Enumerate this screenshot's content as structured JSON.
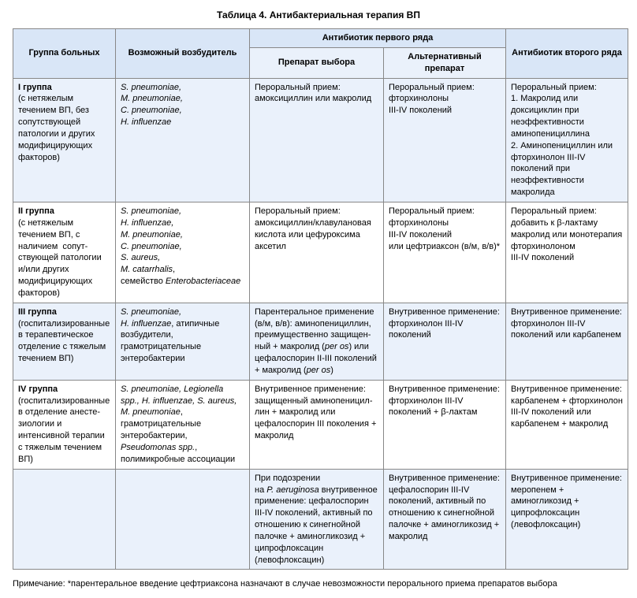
{
  "title": "Таблица 4. Антибактериальная терапия ВП",
  "headers": {
    "group": "Группа больных",
    "pathogen": "Возможный возбудитель",
    "firstline": "Антибиотик первого ряда",
    "choice": "Препарат выбора",
    "alt": "Альтернативный препарат",
    "secondline": "Антибиотик второго ряда"
  },
  "rows": [
    {
      "group_html": "<b>I группа</b><br>(с нетяжелым течением ВП, без сопутствующей патологии и других модифицирующих факторов)",
      "pathogen_html": "<i>S. pneumoniae,<br>M. pneumoniae,<br>C. pneumoniae,<br>H. influenzae</i>",
      "choice_html": "Пероральный&nbsp;прием: амоксициллин или макролид",
      "alt_html": "Пероральный&nbsp;прием: фторхинолоны<br>III-IV поколений",
      "second_html": "Пероральный&nbsp;прием:<br>1. Макролид или доксициклин при неэффективности аминопенициллина<br>2. Аминопенициллин или фтор­хинолон III-IV поколений при неэффективности макролида"
    },
    {
      "group_html": "<b>II группа</b><br>(с нетяжелым течением ВП, с наличием &nbsp;сопут­ствующей патологии и/или других модифицирующих факторов)",
      "pathogen_html": "<i>S. pneumoniae,<br>H. influenzae,<br>M. pneumoniae,<br>C. pneumoniae,<br>S. aureus,<br>M. catarrhalis</i>,<br>семейство <i>Enterobacteriaceae</i>",
      "choice_html": "Пероральный&nbsp;прием: амоксициллин/клавулановая кислота или цефуроксима аксетил",
      "alt_html": "Пероральный&nbsp;прием: фторхинолоны<br>III-IV поколений<br>или цефтриаксон (в/м, в/в)*",
      "second_html": "Пероральный прием:<br>добавить к β-лактаму макролид или монотерапия фторхинолоном<br>III-IV поколений"
    },
    {
      "group_html": "<b>III группа</b><br>(госпитализированные в терапевтическое отделение с тяжелым течением ВП)",
      "pathogen_html": "<i>S. pneumoniae,<br>H. influenzae</i>, атипичные возбудители, грамотрицательные энтеробактерии",
      "choice_html": "Парентеральное применение (в/м, в/в): аминопенициллин, преимущественно защищен­ный + макролид (<i>per os</i>) или цефалоспорин II-III поколе­ний + макролид (<i>per os</i>)",
      "alt_html": "Внутривенное применение: фторхинолон III-IV поколений",
      "second_html": "Внутривенное применение: фторхинолон III-IV поколений или карбапенем"
    },
    {
      "group_html": "<b>IV группа</b><br>(госпитализированные в отделение анесте­зиологии и интенсивной терапии с тяжелым течением ВП)",
      "pathogen_html": "<i>S. pneumoniae, Legionella spp., H. influenzae, S. aureus,<br>M. pneumoniae</i>, грамотрицательные энтеробактерии, <i>Pseudomonas spp.</i>, полимикробные ассоциации",
      "choice_html": "Внутривенное применение: защищенный аминопеницил­лин + макролид или цефалоспорин III поколения + макролид",
      "alt_html": "Внутривенное применение: фторхинолон III-IV поколений + β-лактам",
      "second_html": "Внутривенное применение: карбапенем + фторхинолон III-IV поколений или карбапенем + макролид"
    },
    {
      "group_html": "",
      "pathogen_html": "",
      "choice_html": "При подозрении<br>на <i>P. aeruginosa</i> внутривенное применение: цефалоспорин III-IV поколений, активный по отношению к синегнойной палочке + аминогликозид + ципрофлоксацин (левофлоксацин)",
      "alt_html": "Внутривенное применение: цефалоспорин III-IV поколе­ний, активный по отношению к синегнойной палочке + аминогликозид + макролид",
      "second_html": "Внутривенное применение: меропенем + аминогликозид + ципрофлоксацин (левофлоксацин)"
    }
  ],
  "footnote": "Примечание: *парентеральное введение цефтриаксона назначают в случае невозможности перорального приема препаратов выбора"
}
